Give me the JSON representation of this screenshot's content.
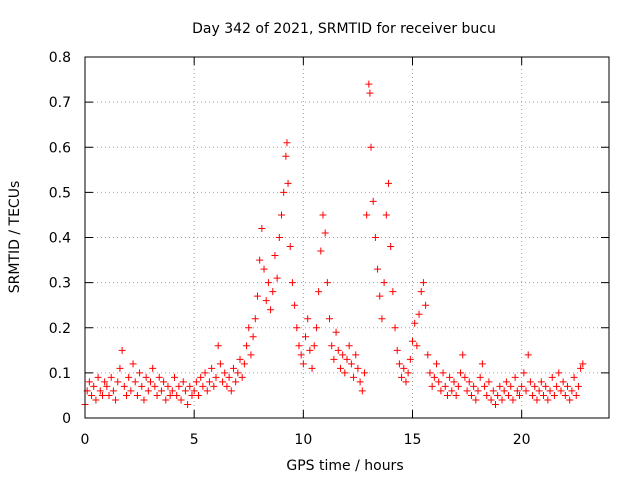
{
  "chart_data": {
    "type": "scatter",
    "title": "Day 342 of 2021, SRMTID for receiver bucu",
    "xlabel": "GPS time / hours",
    "ylabel": "SRMTID / TECUs",
    "xlim": [
      0,
      24
    ],
    "ylim": [
      0,
      0.8
    ],
    "xticks": [
      0,
      5,
      10,
      15,
      20
    ],
    "xtick_labels": [
      "0",
      "5",
      "10",
      "15",
      "20"
    ],
    "yticks": [
      0,
      0.1,
      0.2,
      0.3,
      0.4,
      0.5,
      0.6,
      0.7,
      0.8
    ],
    "ytick_labels": [
      "0",
      "0.1",
      "0.2",
      "0.3",
      "0.4",
      "0.5",
      "0.6",
      "0.7",
      "0.8"
    ],
    "grid": true,
    "marker": "plus",
    "color": "#ff0000",
    "series": [
      {
        "name": "SRMTID",
        "points": [
          [
            0.0,
            0.03
          ],
          [
            0.1,
            0.06
          ],
          [
            0.2,
            0.08
          ],
          [
            0.3,
            0.05
          ],
          [
            0.4,
            0.07
          ],
          [
            0.5,
            0.04
          ],
          [
            0.6,
            0.09
          ],
          [
            0.7,
            0.06
          ],
          [
            0.8,
            0.05
          ],
          [
            0.9,
            0.08
          ],
          [
            1.0,
            0.07
          ],
          [
            1.1,
            0.05
          ],
          [
            1.2,
            0.09
          ],
          [
            1.3,
            0.06
          ],
          [
            1.4,
            0.04
          ],
          [
            1.5,
            0.08
          ],
          [
            1.6,
            0.11
          ],
          [
            1.7,
            0.15
          ],
          [
            1.8,
            0.07
          ],
          [
            1.9,
            0.05
          ],
          [
            2.0,
            0.09
          ],
          [
            2.1,
            0.06
          ],
          [
            2.2,
            0.12
          ],
          [
            2.3,
            0.08
          ],
          [
            2.4,
            0.05
          ],
          [
            2.5,
            0.1
          ],
          [
            2.6,
            0.07
          ],
          [
            2.7,
            0.04
          ],
          [
            2.8,
            0.09
          ],
          [
            2.9,
            0.06
          ],
          [
            3.0,
            0.08
          ],
          [
            3.1,
            0.11
          ],
          [
            3.2,
            0.07
          ],
          [
            3.3,
            0.05
          ],
          [
            3.4,
            0.09
          ],
          [
            3.5,
            0.06
          ],
          [
            3.6,
            0.08
          ],
          [
            3.7,
            0.04
          ],
          [
            3.8,
            0.07
          ],
          [
            3.9,
            0.05
          ],
          [
            4.0,
            0.06
          ],
          [
            4.1,
            0.09
          ],
          [
            4.2,
            0.05
          ],
          [
            4.3,
            0.07
          ],
          [
            4.4,
            0.04
          ],
          [
            4.5,
            0.08
          ],
          [
            4.6,
            0.06
          ],
          [
            4.7,
            0.03
          ],
          [
            4.8,
            0.07
          ],
          [
            4.9,
            0.05
          ],
          [
            5.0,
            0.06
          ],
          [
            5.1,
            0.08
          ],
          [
            5.2,
            0.05
          ],
          [
            5.3,
            0.09
          ],
          [
            5.4,
            0.07
          ],
          [
            5.5,
            0.1
          ],
          [
            5.6,
            0.06
          ],
          [
            5.7,
            0.08
          ],
          [
            5.8,
            0.11
          ],
          [
            5.9,
            0.07
          ],
          [
            6.0,
            0.09
          ],
          [
            6.1,
            0.16
          ],
          [
            6.2,
            0.12
          ],
          [
            6.3,
            0.08
          ],
          [
            6.4,
            0.1
          ],
          [
            6.5,
            0.07
          ],
          [
            6.6,
            0.09
          ],
          [
            6.7,
            0.06
          ],
          [
            6.8,
            0.11
          ],
          [
            6.9,
            0.08
          ],
          [
            7.0,
            0.1
          ],
          [
            7.1,
            0.13
          ],
          [
            7.2,
            0.09
          ],
          [
            7.3,
            0.12
          ],
          [
            7.4,
            0.16
          ],
          [
            7.5,
            0.2
          ],
          [
            7.6,
            0.14
          ],
          [
            7.7,
            0.18
          ],
          [
            7.8,
            0.22
          ],
          [
            7.9,
            0.27
          ],
          [
            8.0,
            0.35
          ],
          [
            8.1,
            0.42
          ],
          [
            8.2,
            0.33
          ],
          [
            8.3,
            0.26
          ],
          [
            8.4,
            0.3
          ],
          [
            8.5,
            0.24
          ],
          [
            8.6,
            0.28
          ],
          [
            8.7,
            0.36
          ],
          [
            8.8,
            0.31
          ],
          [
            8.9,
            0.4
          ],
          [
            9.0,
            0.45
          ],
          [
            9.1,
            0.5
          ],
          [
            9.2,
            0.58
          ],
          [
            9.25,
            0.61
          ],
          [
            9.3,
            0.52
          ],
          [
            9.4,
            0.38
          ],
          [
            9.5,
            0.3
          ],
          [
            9.6,
            0.25
          ],
          [
            9.7,
            0.2
          ],
          [
            9.8,
            0.16
          ],
          [
            9.9,
            0.14
          ],
          [
            10.0,
            0.12
          ],
          [
            10.1,
            0.18
          ],
          [
            10.2,
            0.22
          ],
          [
            10.3,
            0.15
          ],
          [
            10.4,
            0.11
          ],
          [
            10.5,
            0.16
          ],
          [
            10.6,
            0.2
          ],
          [
            10.7,
            0.28
          ],
          [
            10.8,
            0.37
          ],
          [
            10.9,
            0.45
          ],
          [
            11.0,
            0.41
          ],
          [
            11.1,
            0.3
          ],
          [
            11.2,
            0.22
          ],
          [
            11.3,
            0.16
          ],
          [
            11.4,
            0.13
          ],
          [
            11.5,
            0.19
          ],
          [
            11.6,
            0.15
          ],
          [
            11.7,
            0.11
          ],
          [
            11.8,
            0.14
          ],
          [
            11.9,
            0.1
          ],
          [
            12.0,
            0.13
          ],
          [
            12.1,
            0.16
          ],
          [
            12.2,
            0.12
          ],
          [
            12.3,
            0.09
          ],
          [
            12.4,
            0.14
          ],
          [
            12.5,
            0.11
          ],
          [
            12.6,
            0.08
          ],
          [
            12.7,
            0.06
          ],
          [
            12.8,
            0.1
          ],
          [
            12.9,
            0.45
          ],
          [
            13.0,
            0.74
          ],
          [
            13.05,
            0.72
          ],
          [
            13.1,
            0.6
          ],
          [
            13.2,
            0.48
          ],
          [
            13.3,
            0.4
          ],
          [
            13.4,
            0.33
          ],
          [
            13.5,
            0.27
          ],
          [
            13.6,
            0.22
          ],
          [
            13.7,
            0.3
          ],
          [
            13.8,
            0.45
          ],
          [
            13.9,
            0.52
          ],
          [
            14.0,
            0.38
          ],
          [
            14.1,
            0.28
          ],
          [
            14.2,
            0.2
          ],
          [
            14.3,
            0.15
          ],
          [
            14.4,
            0.12
          ],
          [
            14.5,
            0.09
          ],
          [
            14.6,
            0.11
          ],
          [
            14.7,
            0.08
          ],
          [
            14.8,
            0.1
          ],
          [
            14.9,
            0.13
          ],
          [
            15.0,
            0.17
          ],
          [
            15.1,
            0.21
          ],
          [
            15.2,
            0.16
          ],
          [
            15.3,
            0.23
          ],
          [
            15.4,
            0.28
          ],
          [
            15.5,
            0.3
          ],
          [
            15.6,
            0.25
          ],
          [
            15.7,
            0.14
          ],
          [
            15.8,
            0.1
          ],
          [
            15.9,
            0.07
          ],
          [
            16.0,
            0.09
          ],
          [
            16.1,
            0.12
          ],
          [
            16.2,
            0.08
          ],
          [
            16.3,
            0.06
          ],
          [
            16.4,
            0.1
          ],
          [
            16.5,
            0.07
          ],
          [
            16.6,
            0.05
          ],
          [
            16.7,
            0.09
          ],
          [
            16.8,
            0.06
          ],
          [
            16.9,
            0.08
          ],
          [
            17.0,
            0.05
          ],
          [
            17.1,
            0.07
          ],
          [
            17.2,
            0.1
          ],
          [
            17.3,
            0.14
          ],
          [
            17.4,
            0.09
          ],
          [
            17.5,
            0.06
          ],
          [
            17.6,
            0.08
          ],
          [
            17.7,
            0.05
          ],
          [
            17.8,
            0.07
          ],
          [
            17.9,
            0.04
          ],
          [
            18.0,
            0.06
          ],
          [
            18.1,
            0.09
          ],
          [
            18.2,
            0.12
          ],
          [
            18.3,
            0.07
          ],
          [
            18.4,
            0.05
          ],
          [
            18.5,
            0.08
          ],
          [
            18.6,
            0.04
          ],
          [
            18.7,
            0.06
          ],
          [
            18.8,
            0.03
          ],
          [
            18.9,
            0.05
          ],
          [
            19.0,
            0.07
          ],
          [
            19.1,
            0.04
          ],
          [
            19.2,
            0.06
          ],
          [
            19.3,
            0.08
          ],
          [
            19.4,
            0.05
          ],
          [
            19.5,
            0.07
          ],
          [
            19.6,
            0.04
          ],
          [
            19.7,
            0.09
          ],
          [
            19.8,
            0.06
          ],
          [
            19.9,
            0.05
          ],
          [
            20.0,
            0.07
          ],
          [
            20.1,
            0.1
          ],
          [
            20.2,
            0.06
          ],
          [
            20.3,
            0.14
          ],
          [
            20.4,
            0.08
          ],
          [
            20.5,
            0.05
          ],
          [
            20.6,
            0.07
          ],
          [
            20.7,
            0.04
          ],
          [
            20.8,
            0.06
          ],
          [
            20.9,
            0.08
          ],
          [
            21.0,
            0.05
          ],
          [
            21.1,
            0.07
          ],
          [
            21.2,
            0.04
          ],
          [
            21.3,
            0.06
          ],
          [
            21.4,
            0.09
          ],
          [
            21.5,
            0.05
          ],
          [
            21.6,
            0.07
          ],
          [
            21.7,
            0.1
          ],
          [
            21.8,
            0.06
          ],
          [
            21.9,
            0.08
          ],
          [
            22.0,
            0.05
          ],
          [
            22.1,
            0.07
          ],
          [
            22.2,
            0.04
          ],
          [
            22.3,
            0.06
          ],
          [
            22.4,
            0.09
          ],
          [
            22.5,
            0.05
          ],
          [
            22.6,
            0.07
          ],
          [
            22.7,
            0.11
          ],
          [
            22.8,
            0.12
          ]
        ]
      }
    ]
  }
}
